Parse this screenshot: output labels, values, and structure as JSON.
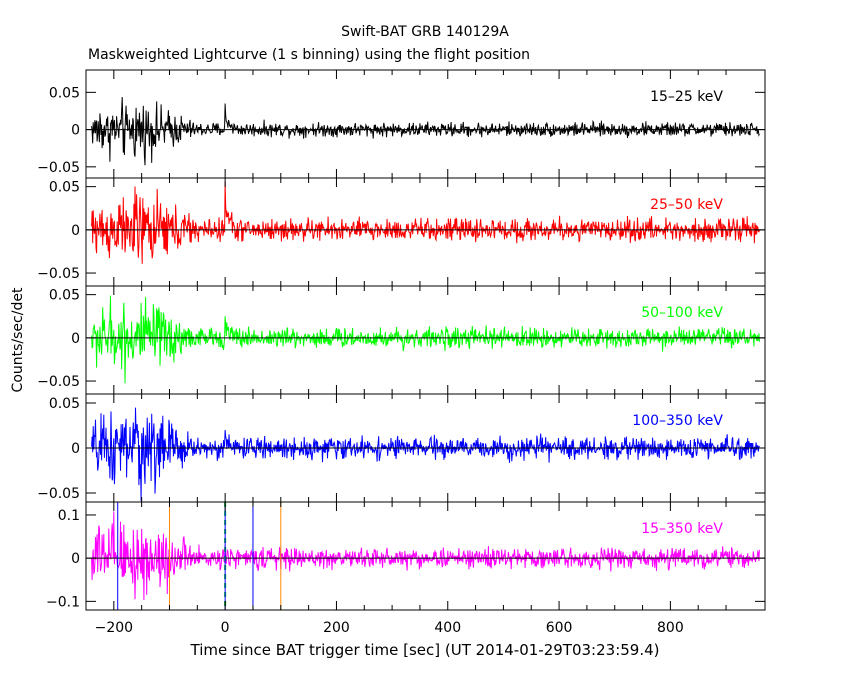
{
  "header": {
    "title": "Swift-BAT GRB 140129A",
    "subtitle": "Maskweighted Lightcurve (1 s binning) using the flight position"
  },
  "axes": {
    "xlabel": "Time since BAT trigger time [sec] (UT 2014-01-29T03:23:59.4)",
    "ylabel": "Counts/sec/det"
  },
  "chart_data": {
    "type": "line",
    "x_range": [
      -250,
      970
    ],
    "x_ticks": [
      -200,
      0,
      200,
      400,
      600,
      800
    ],
    "x_tick_labels": [
      "−200",
      "0",
      "200",
      "400",
      "600",
      "800"
    ],
    "grid": false,
    "panels": [
      {
        "name": "15–25 keV",
        "color": "#000000",
        "ylim": [
          -0.065,
          0.08
        ],
        "y_ticks": [
          -0.05,
          0,
          0.05
        ],
        "y_tick_labels": [
          "−0.05",
          "0",
          "0.05"
        ],
        "x_start": -240,
        "x_end": 960,
        "early_amp": 0.035,
        "late_amp": 0.008,
        "spike_x": 0,
        "spike_y": 0.035
      },
      {
        "name": "25–50 keV",
        "color": "#ff0000",
        "ylim": [
          -0.065,
          0.06
        ],
        "y_ticks": [
          -0.05,
          0,
          0.05
        ],
        "y_tick_labels": [
          "−0.05",
          "0",
          "0.05"
        ],
        "x_start": -240,
        "x_end": 960,
        "early_amp": 0.04,
        "late_amp": 0.011,
        "spike_x": 0,
        "spike_y": 0.056
      },
      {
        "name": "50–100 keV",
        "color": "#00ff00",
        "ylim": [
          -0.065,
          0.06
        ],
        "y_ticks": [
          -0.05,
          0,
          0.05
        ],
        "y_tick_labels": [
          "−0.05",
          "0",
          "0.05"
        ],
        "x_start": -240,
        "x_end": 960,
        "early_amp": 0.04,
        "late_amp": 0.01,
        "spike_x": 0,
        "spike_y": 0.025
      },
      {
        "name": "100–350 keV",
        "color": "#0000ff",
        "ylim": [
          -0.06,
          0.06
        ],
        "y_ticks": [
          -0.05,
          0,
          0.05
        ],
        "y_tick_labels": [
          "−0.05",
          "0",
          "0.05"
        ],
        "x_start": -240,
        "x_end": 960,
        "early_amp": 0.045,
        "late_amp": 0.01,
        "spike_x": 0,
        "spike_y": 0.02
      },
      {
        "name": "15–350 keV",
        "color": "#ff00ff",
        "ylim": [
          -0.12,
          0.13
        ],
        "y_ticks": [
          -0.1,
          0,
          0.1
        ],
        "y_tick_labels": [
          "−0.1",
          "0",
          "0.1"
        ],
        "x_start": -240,
        "x_end": 960,
        "early_amp": 0.09,
        "late_amp": 0.02,
        "spike_x": 0,
        "spike_y": 0.03
      }
    ],
    "markers": [
      {
        "x": -100,
        "color": "#ff8800",
        "style": "solid"
      },
      {
        "x": 100,
        "color": "#ff8800",
        "style": "solid"
      },
      {
        "x": 0,
        "color": "#00cc00",
        "style": "dashed"
      },
      {
        "x": 50,
        "color": "#0000ff",
        "style": "solid"
      },
      {
        "x": -193,
        "color": "#0000ff",
        "style": "solid"
      },
      {
        "x": 0,
        "color": "#0000ff",
        "style": "solid"
      }
    ]
  }
}
